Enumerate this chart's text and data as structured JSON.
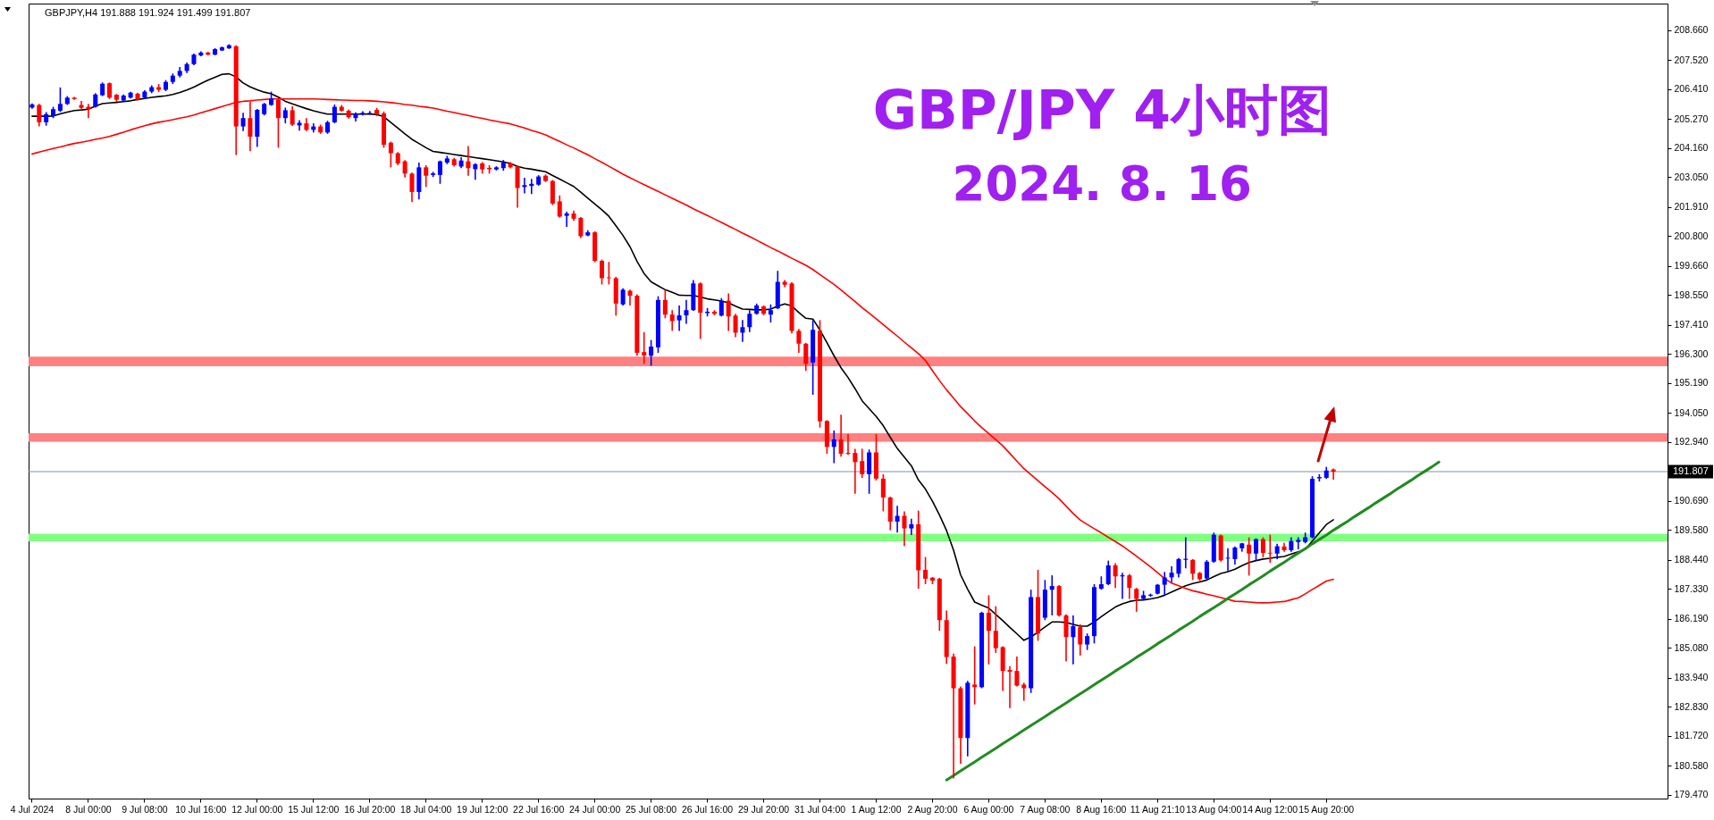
{
  "chart_data": {
    "type": "candlestick",
    "title": "GBP/JPY 4小时图",
    "subtitle": "2024. 8. 16",
    "annotations": [
      "GBPJPY,H4 191.888 191.924 191.499 191.807"
    ],
    "categories": [
      "4 Jul 2024",
      null,
      null,
      null,
      null,
      null,
      null,
      null,
      "8 Jul 00:00",
      null,
      null,
      null,
      null,
      null,
      null,
      null,
      "9 Jul 08:00",
      null,
      null,
      null,
      null,
      null,
      null,
      null,
      "10 Jul 16:00",
      null,
      null,
      null,
      null,
      null,
      null,
      null,
      "12 Jul 00:00",
      null,
      null,
      null,
      null,
      null,
      null,
      null,
      "15 Jul 12:00",
      null,
      null,
      null,
      null,
      null,
      null,
      null,
      "16 Jul 20:00",
      null,
      null,
      null,
      null,
      null,
      null,
      null,
      "18 Jul 04:00",
      null,
      null,
      null,
      null,
      null,
      null,
      null,
      "19 Jul 12:00",
      null,
      null,
      null,
      null,
      null,
      null,
      null,
      "22 Jul 16:00",
      null,
      null,
      null,
      null,
      null,
      null,
      null,
      "24 Jul 00:00",
      null,
      null,
      null,
      null,
      null,
      null,
      null,
      "25 Jul 08:00",
      null,
      null,
      null,
      null,
      null,
      null,
      null,
      "26 Jul 16:00",
      null,
      null,
      null,
      null,
      null,
      null,
      null,
      "29 Jul 20:00",
      null,
      null,
      null,
      null,
      null,
      null,
      null,
      "31 Jul 04:00",
      null,
      null,
      null,
      null,
      null,
      null,
      null,
      "1 Aug 12:00",
      null,
      null,
      null,
      null,
      null,
      null,
      null,
      "2 Aug 20:00",
      null,
      null,
      null,
      null,
      null,
      null,
      null,
      "6 Aug 00:00",
      null,
      null,
      null,
      null,
      null,
      null,
      null,
      "7 Aug 08:00",
      null,
      null,
      null,
      null,
      null,
      null,
      null,
      "8 Aug 16:00",
      null,
      null,
      null,
      null,
      null,
      null,
      null,
      "11 Aug 21:10",
      null,
      null,
      null,
      null,
      null,
      null,
      null,
      "13 Aug 04:00",
      null,
      null,
      null,
      null,
      null,
      null,
      null,
      "14 Aug 12:00",
      null,
      null,
      null,
      null,
      null,
      null,
      null,
      "15 Aug 20:00",
      null,
      null,
      null,
      null,
      null,
      null,
      null,
      null,
      null,
      null,
      null,
      null,
      null,
      null,
      null,
      null,
      null,
      null,
      null,
      null,
      null,
      null,
      null,
      null,
      null,
      null,
      null,
      null,
      null,
      null,
      null,
      null,
      null,
      null,
      null,
      null,
      null,
      null,
      null,
      null,
      null,
      null,
      null,
      null,
      null,
      null,
      null,
      null
    ],
    "ohlc": [
      [
        205.7,
        205.86,
        205.66,
        205.82
      ],
      [
        205.8,
        205.84,
        204.98,
        205.14
      ],
      [
        205.14,
        205.53,
        205.01,
        205.45
      ],
      [
        205.37,
        205.73,
        205.3,
        205.64
      ],
      [
        205.58,
        206.47,
        205.53,
        205.84
      ],
      [
        205.84,
        206.14,
        205.8,
        206.08
      ],
      [
        206.08,
        206.11,
        206.0,
        206.03
      ],
      [
        205.8,
        205.95,
        205.64,
        205.69
      ],
      [
        205.73,
        205.84,
        205.3,
        205.64
      ],
      [
        205.73,
        206.25,
        205.7,
        206.2
      ],
      [
        206.17,
        206.66,
        206.14,
        206.61
      ],
      [
        206.63,
        206.66,
        206.03,
        206.08
      ],
      [
        206.19,
        206.22,
        205.92,
        206.0
      ],
      [
        205.97,
        206.2,
        205.94,
        206.16
      ],
      [
        206.08,
        206.3,
        206.05,
        206.27
      ],
      [
        206.23,
        206.27,
        205.97,
        206.0
      ],
      [
        206.08,
        206.36,
        206.03,
        206.31
      ],
      [
        206.31,
        206.55,
        206.25,
        206.48
      ],
      [
        206.48,
        206.6,
        206.3,
        206.38
      ],
      [
        206.38,
        206.75,
        206.33,
        206.68
      ],
      [
        206.68,
        207.0,
        206.6,
        206.92
      ],
      [
        206.92,
        207.25,
        206.85,
        207.1
      ],
      [
        207.1,
        207.42,
        207.02,
        207.36
      ],
      [
        207.36,
        207.76,
        207.32,
        207.72
      ],
      [
        207.69,
        207.85,
        207.66,
        207.8
      ],
      [
        207.8,
        207.83,
        207.69,
        207.72
      ],
      [
        207.72,
        207.97,
        207.7,
        207.93
      ],
      [
        207.88,
        208.03,
        207.86,
        208.0
      ],
      [
        207.96,
        208.12,
        207.94,
        208.08
      ],
      [
        208.04,
        208.08,
        203.89,
        204.98
      ],
      [
        204.98,
        205.5,
        204.8,
        205.3
      ],
      [
        205.3,
        205.92,
        204.04,
        204.59
      ],
      [
        204.59,
        205.65,
        204.2,
        205.61
      ],
      [
        205.45,
        205.88,
        205.4,
        205.84
      ],
      [
        205.8,
        206.31,
        205.77,
        206.05
      ],
      [
        206.0,
        206.05,
        204.17,
        205.3
      ],
      [
        205.3,
        205.7,
        205.1,
        205.6
      ],
      [
        205.6,
        205.75,
        205.0,
        205.05
      ],
      [
        205.02,
        205.22,
        204.82,
        205.12
      ],
      [
        205.1,
        205.3,
        204.8,
        204.85
      ],
      [
        204.85,
        205.1,
        204.75,
        204.98
      ],
      [
        204.98,
        205.05,
        204.7,
        204.75
      ],
      [
        204.75,
        205.2,
        204.7,
        205.14
      ],
      [
        205.14,
        205.82,
        205.1,
        205.73
      ],
      [
        205.73,
        205.8,
        205.55,
        205.58
      ],
      [
        205.58,
        205.62,
        205.28,
        205.33
      ],
      [
        205.3,
        205.52,
        205.17,
        205.48
      ],
      [
        205.47,
        205.56,
        205.4,
        205.5
      ],
      [
        205.48,
        205.57,
        205.43,
        205.5
      ],
      [
        205.61,
        205.69,
        205.37,
        205.45
      ],
      [
        205.48,
        205.55,
        204.17,
        204.28
      ],
      [
        204.36,
        204.4,
        203.42,
        203.96
      ],
      [
        203.96,
        204.0,
        203.5,
        203.57
      ],
      [
        203.65,
        203.7,
        203.03,
        203.18
      ],
      [
        203.18,
        203.22,
        202.09,
        202.48
      ],
      [
        202.48,
        203.6,
        202.2,
        203.42
      ],
      [
        203.42,
        203.5,
        202.67,
        203.1
      ],
      [
        203.13,
        203.25,
        203.05,
        203.19
      ],
      [
        203.13,
        203.68,
        202.79,
        203.65
      ],
      [
        203.6,
        203.86,
        203.54,
        203.76
      ],
      [
        203.73,
        203.78,
        203.45,
        203.5
      ],
      [
        203.45,
        203.81,
        203.39,
        203.68
      ],
      [
        203.65,
        204.23,
        203.1,
        203.39
      ],
      [
        203.35,
        203.58,
        202.95,
        203.54
      ],
      [
        203.57,
        203.62,
        203.18,
        203.34
      ],
      [
        203.4,
        203.5,
        203.18,
        203.35
      ],
      [
        203.34,
        203.46,
        203.3,
        203.42
      ],
      [
        203.39,
        203.7,
        203.29,
        203.6
      ],
      [
        203.57,
        203.62,
        203.38,
        203.42
      ],
      [
        203.45,
        203.5,
        201.88,
        202.63
      ],
      [
        202.67,
        203.02,
        202.43,
        202.74
      ],
      [
        202.71,
        202.98,
        202.4,
        202.79
      ],
      [
        202.76,
        203.12,
        202.72,
        203.07
      ],
      [
        203.1,
        203.15,
        202.86,
        202.9
      ],
      [
        202.9,
        202.94,
        201.98,
        202.04
      ],
      [
        202.12,
        202.35,
        201.5,
        201.54
      ],
      [
        201.57,
        201.73,
        201.15,
        201.66
      ],
      [
        201.66,
        201.77,
        201.38,
        201.46
      ],
      [
        201.49,
        201.52,
        200.72,
        200.79
      ],
      [
        200.82,
        201.02,
        200.79,
        200.94
      ],
      [
        200.94,
        200.98,
        199.8,
        199.85
      ],
      [
        199.85,
        199.9,
        198.95,
        199.19
      ],
      [
        199.22,
        199.81,
        198.95,
        199.19
      ],
      [
        199.19,
        199.24,
        197.76,
        198.22
      ],
      [
        198.19,
        198.8,
        198.15,
        198.75
      ],
      [
        198.71,
        198.75,
        198.15,
        198.52
      ],
      [
        198.52,
        198.57,
        196.23,
        196.34
      ],
      [
        196.37,
        197.13,
        195.92,
        196.24
      ],
      [
        196.23,
        196.83,
        195.85,
        196.58
      ],
      [
        196.55,
        198.5,
        196.34,
        198.36
      ],
      [
        198.36,
        198.75,
        197.66,
        197.8
      ],
      [
        197.8,
        197.97,
        197.18,
        197.55
      ],
      [
        197.58,
        198.15,
        197.18,
        197.77
      ],
      [
        197.77,
        198.36,
        197.45,
        197.97
      ],
      [
        197.97,
        199.12,
        197.94,
        198.99
      ],
      [
        198.99,
        199.03,
        196.87,
        197.87
      ],
      [
        197.86,
        198.05,
        197.73,
        197.91
      ],
      [
        197.91,
        197.97,
        197.77,
        197.83
      ],
      [
        197.76,
        198.43,
        197.73,
        198.33
      ],
      [
        198.33,
        198.61,
        197.18,
        197.73
      ],
      [
        197.76,
        197.83,
        196.94,
        197.11
      ],
      [
        197.11,
        197.59,
        196.76,
        197.32
      ],
      [
        197.32,
        197.97,
        197.13,
        197.83
      ],
      [
        197.83,
        198.22,
        197.8,
        198.15
      ],
      [
        198.11,
        198.15,
        197.77,
        197.83
      ],
      [
        197.8,
        198.19,
        197.5,
        197.97
      ],
      [
        198.04,
        199.47,
        198.01,
        199.05
      ],
      [
        199.05,
        199.12,
        198.85,
        198.94
      ],
      [
        198.99,
        199.03,
        197.08,
        197.18
      ],
      [
        197.18,
        197.25,
        196.34,
        196.69
      ],
      [
        196.69,
        196.72,
        195.65,
        195.92
      ],
      [
        195.97,
        197.59,
        194.74,
        197.22
      ],
      [
        197.18,
        197.59,
        193.49,
        193.73
      ],
      [
        193.74,
        193.77,
        192.49,
        192.75
      ],
      [
        192.75,
        193.38,
        192.13,
        193.04
      ],
      [
        193.04,
        193.98,
        192.38,
        192.49
      ],
      [
        192.52,
        193.24,
        192.45,
        192.49
      ],
      [
        192.52,
        192.68,
        190.96,
        192.17
      ],
      [
        192.21,
        192.68,
        191.57,
        191.71
      ],
      [
        191.71,
        192.65,
        190.96,
        192.54
      ],
      [
        192.54,
        193.24,
        191.47,
        191.54
      ],
      [
        191.54,
        191.71,
        190.29,
        190.82
      ],
      [
        190.82,
        190.85,
        189.57,
        189.9
      ],
      [
        189.9,
        190.5,
        189.48,
        190.12
      ],
      [
        190.12,
        190.29,
        188.97,
        189.64
      ],
      [
        189.64,
        190.01,
        189.39,
        189.8
      ],
      [
        189.8,
        190.32,
        187.34,
        188.04
      ],
      [
        188.06,
        188.55,
        187.51,
        187.72
      ],
      [
        187.76,
        187.78,
        187.51,
        187.65
      ],
      [
        187.72,
        187.75,
        185.73,
        186.14
      ],
      [
        186.14,
        186.51,
        184.47,
        184.73
      ],
      [
        184.75,
        184.86,
        180.1,
        183.54
      ],
      [
        183.54,
        183.61,
        180.66,
        181.64
      ],
      [
        181.64,
        183.82,
        180.94,
        183.75
      ],
      [
        183.68,
        185.14,
        182.92,
        183.58
      ],
      [
        183.58,
        186.46,
        183.54,
        186.42
      ],
      [
        186.42,
        187.09,
        184.45,
        185.73
      ],
      [
        185.73,
        186.67,
        184.89,
        185.07
      ],
      [
        185.11,
        185.14,
        183.44,
        184.2
      ],
      [
        184.24,
        184.38,
        182.78,
        184.17
      ],
      [
        184.2,
        184.75,
        183.61,
        183.64
      ],
      [
        183.68,
        183.75,
        183.06,
        183.54
      ],
      [
        183.54,
        187.3,
        183.36,
        187.02
      ],
      [
        187.02,
        188.06,
        185.35,
        185.63
      ],
      [
        186.23,
        187.67,
        186.14,
        187.3
      ],
      [
        187.3,
        187.85,
        186.32,
        187.44
      ],
      [
        187.44,
        187.48,
        186.28,
        186.32
      ],
      [
        186.32,
        186.36,
        184.56,
        185.49
      ],
      [
        185.49,
        186.32,
        184.45,
        185.91
      ],
      [
        185.87,
        185.98,
        184.79,
        185.21
      ],
      [
        185.21,
        185.63,
        185.0,
        185.53
      ],
      [
        185.53,
        187.51,
        185.25,
        187.4
      ],
      [
        187.34,
        187.81,
        187.3,
        187.51
      ],
      [
        187.51,
        188.41,
        187.48,
        188.23
      ],
      [
        188.23,
        188.31,
        187.37,
        187.81
      ],
      [
        187.81,
        187.95,
        186.95,
        187.85
      ],
      [
        187.85,
        187.9,
        186.95,
        187.37
      ],
      [
        187.33,
        187.37,
        186.46,
        186.95
      ],
      [
        186.95,
        187.26,
        186.92,
        187.09
      ],
      [
        187.07,
        187.15,
        187.03,
        187.11
      ],
      [
        187.15,
        187.52,
        187.12,
        187.49
      ],
      [
        187.49,
        187.98,
        187.08,
        187.77
      ],
      [
        187.77,
        188.19,
        187.59,
        187.95
      ],
      [
        187.91,
        188.51,
        187.77,
        188.47
      ],
      [
        188.44,
        189.3,
        188.12,
        188.48
      ],
      [
        188.44,
        188.47,
        187.67,
        187.91
      ],
      [
        187.94,
        187.98,
        187.63,
        187.7
      ],
      [
        187.73,
        188.43,
        187.67,
        188.37
      ],
      [
        188.37,
        189.48,
        188.33,
        189.4
      ],
      [
        189.37,
        189.4,
        188.37,
        188.42
      ],
      [
        188.49,
        188.88,
        188.01,
        188.52
      ],
      [
        188.47,
        188.95,
        188.26,
        188.91
      ],
      [
        188.88,
        189.09,
        188.75,
        189.07
      ],
      [
        189.02,
        189.3,
        187.84,
        188.68
      ],
      [
        188.68,
        189.26,
        188.4,
        189.23
      ],
      [
        189.23,
        189.3,
        188.54,
        188.7
      ],
      [
        188.71,
        189.4,
        188.33,
        188.68
      ],
      [
        188.68,
        189.05,
        188.47,
        188.96
      ],
      [
        188.95,
        189.09,
        188.75,
        188.81
      ],
      [
        188.81,
        189.3,
        188.75,
        189.16
      ],
      [
        189.12,
        189.3,
        188.84,
        189.2
      ],
      [
        189.12,
        189.48,
        189.07,
        189.3
      ],
      [
        189.3,
        191.63,
        189.26,
        191.53
      ],
      [
        191.55,
        191.71,
        191.43,
        191.6
      ],
      [
        191.57,
        191.99,
        191.53,
        191.85
      ],
      [
        191.888,
        191.924,
        191.499,
        191.807
      ],
      null,
      null,
      null,
      null,
      null,
      null,
      null,
      null,
      null,
      null,
      null,
      null,
      null,
      null,
      null,
      null,
      null,
      null,
      null,
      null,
      null,
      null,
      null,
      null,
      null,
      null,
      null,
      null,
      null,
      null,
      null,
      null,
      null,
      null,
      null,
      null,
      null,
      null,
      null,
      null,
      null,
      null,
      null,
      null,
      null,
      null,
      null
    ],
    "colors": [
      "#0000ff",
      "#ff0000",
      "#0000ff",
      "#0000ff",
      "#0000ff",
      "#0000ff",
      "#ff0000",
      "#ff0000",
      "#ff0000",
      "#0000ff",
      "#0000ff",
      "#ff0000",
      "#ff0000",
      "#0000ff",
      "#0000ff",
      "#ff0000",
      "#0000ff",
      "#0000ff",
      "#ff0000",
      "#0000ff",
      "#0000ff",
      "#0000ff",
      "#0000ff",
      "#0000ff",
      "#0000ff",
      "#ff0000",
      "#0000ff",
      "#0000ff",
      "#0000ff",
      "#ff0000",
      "#0000ff",
      "#ff0000",
      "#0000ff",
      "#0000ff",
      "#0000ff",
      "#ff0000",
      "#0000ff",
      "#ff0000",
      "#0000ff",
      "#ff0000",
      "#0000ff",
      "#ff0000",
      "#0000ff",
      "#0000ff",
      "#ff0000",
      "#ff0000",
      "#0000ff",
      "#0000ff",
      "#0000ff",
      "#ff0000",
      "#ff0000",
      "#ff0000",
      "#ff0000",
      "#ff0000",
      "#ff0000",
      "#0000ff",
      "#ff0000",
      "#0000ff",
      "#0000ff",
      "#0000ff",
      "#ff0000",
      "#0000ff",
      "#ff0000",
      "#0000ff",
      "#ff0000",
      "#ff0000",
      "#0000ff",
      "#0000ff",
      "#ff0000",
      "#ff0000",
      "#0000ff",
      "#0000ff",
      "#0000ff",
      "#ff0000",
      "#ff0000",
      "#ff0000",
      "#0000ff",
      "#ff0000",
      "#ff0000",
      "#0000ff",
      "#ff0000",
      "#ff0000",
      "#ff0000",
      "#ff0000",
      "#0000ff",
      "#ff0000",
      "#ff0000",
      "#ff0000",
      "#0000ff",
      "#0000ff",
      "#ff0000",
      "#ff0000",
      "#0000ff",
      "#0000ff",
      "#0000ff",
      "#ff0000",
      "#0000ff",
      "#ff0000",
      "#0000ff",
      "#ff0000",
      "#ff0000",
      "#0000ff",
      "#0000ff",
      "#0000ff",
      "#ff0000",
      "#0000ff",
      "#0000ff",
      "#ff0000",
      "#ff0000",
      "#ff0000",
      "#ff0000",
      "#0000ff",
      "#ff0000",
      "#ff0000",
      "#0000ff",
      "#ff0000",
      "#ff0000",
      "#ff0000",
      "#ff0000",
      "#0000ff",
      "#ff0000",
      "#ff0000",
      "#ff0000",
      "#0000ff",
      "#ff0000",
      "#0000ff",
      "#ff0000",
      "#ff0000",
      "#ff0000",
      "#ff0000",
      "#ff0000",
      "#ff0000",
      "#ff0000",
      "#0000ff",
      "#ff0000",
      "#0000ff",
      "#ff0000",
      "#ff0000",
      "#ff0000",
      "#ff0000",
      "#ff0000",
      "#ff0000",
      "#0000ff",
      "#ff0000",
      "#0000ff",
      "#0000ff",
      "#ff0000",
      "#ff0000",
      "#0000ff",
      "#ff0000",
      "#0000ff",
      "#0000ff",
      "#0000ff",
      "#0000ff",
      "#ff0000",
      "#0000ff",
      "#ff0000",
      "#ff0000",
      "#0000ff",
      "#0000ff",
      "#0000ff",
      "#0000ff",
      "#0000ff",
      "#0000ff",
      "#0000ff",
      "#ff0000",
      "#ff0000",
      "#0000ff",
      "#0000ff",
      "#ff0000",
      "#0000ff",
      "#0000ff",
      "#0000ff",
      "#ff0000",
      "#0000ff",
      "#ff0000",
      "#ff0000",
      "#0000ff",
      "#ff0000",
      "#0000ff",
      "#0000ff",
      "#0000ff",
      "#0000ff",
      "#0000ff",
      "#0000ff",
      "#ff0000",
      null,
      null,
      null,
      null,
      null,
      null,
      null,
      null,
      null,
      null,
      null,
      null,
      null,
      null,
      null,
      null,
      null,
      null,
      null,
      null,
      null,
      null,
      null,
      null,
      null,
      null,
      null,
      null,
      null,
      null,
      null,
      null,
      null,
      null,
      null,
      null,
      null,
      null,
      null,
      null,
      null,
      null,
      null,
      null,
      null,
      null,
      null
    ],
    "ylim": [
      179.33,
      209.67
    ],
    "yticks": [
      {
        "value": 208.66,
        "label": "208.660"
      },
      {
        "value": 207.52,
        "label": "207.520"
      },
      {
        "value": 206.41,
        "label": "206.410"
      },
      {
        "value": 205.27,
        "label": "205.270"
      },
      {
        "value": 204.16,
        "label": "204.160"
      },
      {
        "value": 203.05,
        "label": "203.050"
      },
      {
        "value": 201.91,
        "label": "201.910"
      },
      {
        "value": 200.8,
        "label": "200.800"
      },
      {
        "value": 199.66,
        "label": "199.660"
      },
      {
        "value": 198.55,
        "label": "198.550"
      },
      {
        "value": 197.41,
        "label": "197.410"
      },
      {
        "value": 196.3,
        "label": "196.300"
      },
      {
        "value": 195.19,
        "label": "195.190"
      },
      {
        "value": 194.05,
        "label": "194.050"
      },
      {
        "value": 192.94,
        "label": "192.940"
      },
      {
        "value": 190.69,
        "label": "190.690"
      },
      {
        "value": 189.58,
        "label": "189.580"
      },
      {
        "value": 188.44,
        "label": "188.440"
      },
      {
        "value": 187.33,
        "label": "187.330"
      },
      {
        "value": 186.19,
        "label": "186.190"
      },
      {
        "value": 185.08,
        "label": "185.080"
      },
      {
        "value": 183.94,
        "label": "183.940"
      },
      {
        "value": 182.83,
        "label": "182.830"
      },
      {
        "value": 181.72,
        "label": "181.720"
      },
      {
        "value": 180.58,
        "label": "180.580"
      },
      {
        "value": 179.47,
        "label": "179.470"
      }
    ],
    "ref_lines": [
      {
        "axis": "y",
        "value": 191.807,
        "label": "191.807",
        "color": "#8093a8"
      }
    ],
    "bands": [
      {
        "axis": "y",
        "from": 195.83,
        "to": 196.2,
        "color": "#ff8080"
      },
      {
        "axis": "y",
        "from": 192.95,
        "to": 193.27,
        "color": "#ff8080"
      },
      {
        "axis": "y",
        "from": 189.15,
        "to": 189.44,
        "color": "#80ff80"
      }
    ],
    "series": [
      {
        "type": "line",
        "color": "#000000",
        "values": [
          205.37,
          205.37,
          205.37,
          205.38,
          205.46,
          205.53,
          205.59,
          205.61,
          205.64,
          205.76,
          205.85,
          205.88,
          205.9,
          205.93,
          205.96,
          206.01,
          206.05,
          206.09,
          206.12,
          206.15,
          206.2,
          206.28,
          206.37,
          206.48,
          206.62,
          206.75,
          206.86,
          206.97,
          206.99,
          206.87,
          206.64,
          206.49,
          206.38,
          206.29,
          206.23,
          206.1,
          205.94,
          205.84,
          205.75,
          205.66,
          205.58,
          205.51,
          205.45,
          205.45,
          205.45,
          205.45,
          205.45,
          205.45,
          205.45,
          205.44,
          205.35,
          205.13,
          204.92,
          204.7,
          204.49,
          204.33,
          204.17,
          204.03,
          203.99,
          203.95,
          203.91,
          203.87,
          203.83,
          203.79,
          203.75,
          203.71,
          203.67,
          203.63,
          203.57,
          203.46,
          203.39,
          203.35,
          203.3,
          203.25,
          203.11,
          202.97,
          202.83,
          202.69,
          202.47,
          202.24,
          202.02,
          201.8,
          201.55,
          201.19,
          200.82,
          200.39,
          199.83,
          199.37,
          199.05,
          198.9,
          198.75,
          198.65,
          198.54,
          198.53,
          198.53,
          198.47,
          198.4,
          198.36,
          198.32,
          198.25,
          198.12,
          198.01,
          198.0,
          197.98,
          197.98,
          198.01,
          198.12,
          198.21,
          198.13,
          197.88,
          197.66,
          197.63,
          197.21,
          196.73,
          196.23,
          195.77,
          195.4,
          194.97,
          194.51,
          194.21,
          193.91,
          193.56,
          193.12,
          192.69,
          192.36,
          192.03,
          191.49,
          191.14,
          190.68,
          190.15,
          189.56,
          188.81,
          187.87,
          187.32,
          186.83,
          186.71,
          186.6,
          186.36,
          186.12,
          185.86,
          185.62,
          185.37,
          185.5,
          185.68,
          185.88,
          186.07,
          186.07,
          186.05,
          185.98,
          185.91,
          185.91,
          186.07,
          186.27,
          186.46,
          186.64,
          186.76,
          186.85,
          186.9,
          186.91,
          186.95,
          187.0,
          187.09,
          187.21,
          187.33,
          187.45,
          187.54,
          187.6,
          187.67,
          187.8,
          187.92,
          187.99,
          188.08,
          188.22,
          188.34,
          188.41,
          188.47,
          188.5,
          188.54,
          188.57,
          188.66,
          188.75,
          188.84,
          189.16,
          189.47,
          189.79,
          189.97,
          null,
          null,
          null,
          null,
          null,
          null,
          null,
          null,
          null,
          null,
          null,
          null,
          null,
          null,
          null,
          null,
          null,
          null,
          null,
          null,
          null,
          null,
          null,
          null,
          null,
          null,
          null,
          null,
          null,
          null,
          null,
          null,
          null,
          null,
          null,
          null,
          null,
          null,
          null,
          null,
          null,
          null,
          null,
          null,
          null,
          null,
          null
        ]
      },
      {
        "type": "line",
        "color": "#ff0000",
        "values": [
          203.93,
          204.0,
          204.07,
          204.14,
          204.2,
          204.27,
          204.33,
          204.38,
          204.43,
          204.49,
          204.54,
          204.6,
          204.68,
          204.76,
          204.85,
          204.93,
          205.01,
          205.08,
          205.14,
          205.19,
          205.24,
          205.3,
          205.35,
          205.42,
          205.5,
          205.58,
          205.66,
          205.74,
          205.82,
          205.9,
          205.94,
          205.96,
          205.99,
          206.01,
          206.03,
          206.03,
          206.03,
          206.03,
          206.03,
          206.03,
          206.03,
          206.02,
          206.01,
          206.0,
          205.99,
          205.98,
          205.97,
          205.97,
          205.96,
          205.94,
          205.92,
          205.89,
          205.86,
          205.82,
          205.79,
          205.75,
          205.72,
          205.68,
          205.62,
          205.56,
          205.51,
          205.45,
          205.4,
          205.34,
          205.29,
          205.23,
          205.18,
          205.13,
          205.08,
          205.0,
          204.92,
          204.83,
          204.75,
          204.66,
          204.53,
          204.41,
          204.28,
          204.16,
          204.03,
          203.9,
          203.75,
          203.61,
          203.46,
          203.31,
          203.16,
          203.02,
          202.89,
          202.76,
          202.63,
          202.5,
          202.37,
          202.24,
          202.11,
          201.98,
          201.84,
          201.71,
          201.58,
          201.45,
          201.32,
          201.18,
          201.05,
          200.91,
          200.78,
          200.64,
          200.5,
          200.36,
          200.23,
          200.09,
          199.95,
          199.82,
          199.68,
          199.52,
          199.33,
          199.14,
          198.95,
          198.74,
          198.52,
          198.3,
          198.07,
          197.85,
          197.64,
          197.42,
          197.2,
          196.98,
          196.75,
          196.53,
          196.31,
          196.05,
          195.66,
          195.28,
          194.93,
          194.61,
          194.29,
          194.02,
          193.74,
          193.49,
          193.26,
          193.03,
          192.79,
          192.5,
          192.21,
          191.92,
          191.69,
          191.46,
          191.23,
          191.01,
          190.77,
          190.49,
          190.21,
          189.96,
          189.79,
          189.63,
          189.47,
          189.3,
          189.14,
          188.97,
          188.78,
          188.58,
          188.38,
          188.17,
          187.95,
          187.73,
          187.55,
          187.45,
          187.35,
          187.26,
          187.2,
          187.13,
          187.07,
          187.0,
          186.93,
          186.86,
          186.85,
          186.83,
          186.81,
          186.8,
          186.81,
          186.83,
          186.85,
          186.92,
          186.99,
          187.14,
          187.31,
          187.47,
          187.63,
          187.7,
          null,
          null,
          null,
          null,
          null,
          null,
          null,
          null,
          null,
          null,
          null,
          null,
          null,
          null,
          null,
          null,
          null,
          null,
          null,
          null,
          null,
          null,
          null,
          null,
          null,
          null,
          null,
          null,
          null,
          null,
          null,
          null,
          null,
          null,
          null,
          null,
          null,
          null,
          null,
          null,
          null,
          null,
          null,
          null,
          null,
          null,
          null
        ]
      },
      {
        "type": "line",
        "color": "#228b22",
        "values": [
          null,
          null,
          null,
          null,
          null,
          null,
          null,
          null,
          null,
          null,
          null,
          null,
          null,
          null,
          null,
          null,
          null,
          null,
          null,
          null,
          null,
          null,
          null,
          null,
          null,
          null,
          null,
          null,
          null,
          null,
          null,
          null,
          null,
          null,
          null,
          null,
          null,
          null,
          null,
          null,
          null,
          null,
          null,
          null,
          null,
          null,
          null,
          null,
          null,
          null,
          null,
          null,
          null,
          null,
          null,
          null,
          null,
          null,
          null,
          null,
          null,
          null,
          null,
          null,
          null,
          null,
          null,
          null,
          null,
          null,
          null,
          null,
          null,
          null,
          null,
          null,
          null,
          null,
          null,
          null,
          null,
          null,
          null,
          null,
          null,
          null,
          null,
          null,
          null,
          null,
          null,
          null,
          null,
          null,
          null,
          null,
          null,
          null,
          null,
          null,
          null,
          null,
          null,
          null,
          null,
          null,
          null,
          null,
          null,
          null,
          null,
          null,
          null,
          null,
          null,
          null,
          null,
          null,
          null,
          null,
          null,
          null,
          null,
          null,
          null,
          null,
          null,
          null,
          null,
          null,
          180.04,
          180.21,
          180.39,
          180.56,
          180.73,
          180.91,
          181.08,
          181.25,
          181.43,
          181.6,
          181.77,
          181.95,
          182.12,
          182.29,
          182.46,
          182.64,
          182.81,
          182.98,
          183.16,
          183.33,
          183.5,
          183.68,
          183.85,
          184.02,
          184.2,
          184.37,
          184.54,
          184.72,
          184.89,
          185.06,
          185.24,
          185.41,
          185.58,
          185.76,
          185.93,
          186.1,
          186.28,
          186.45,
          186.62,
          186.79,
          186.97,
          187.14,
          187.31,
          187.49,
          187.66,
          187.83,
          188.01,
          188.18,
          188.35,
          188.53,
          188.7,
          188.87,
          189.05,
          189.22,
          189.39,
          189.57,
          189.74,
          189.91,
          190.09,
          190.26,
          190.43,
          190.61,
          190.78,
          190.95,
          191.13,
          191.3,
          191.47,
          191.65,
          191.82,
          191.99,
          192.17,
          null,
          null,
          null,
          null,
          null,
          null,
          null,
          null,
          null,
          null,
          null,
          null,
          null,
          null,
          null,
          null,
          null,
          null,
          null,
          null,
          null,
          null,
          null,
          null,
          null,
          null,
          null,
          null,
          null,
          null,
          null,
          null
        ]
      }
    ]
  }
}
